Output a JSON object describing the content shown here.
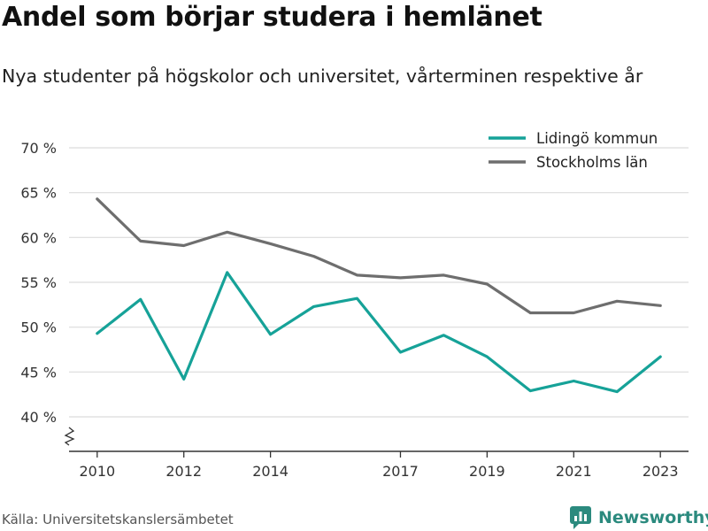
{
  "header": {
    "title": "Andel som börjar studera i hemlänet",
    "subtitle": "Nya studenter på högskolor och universitet, vårterminen respektive år"
  },
  "footer": {
    "source": "Källa: Universitetskanslersämbetet",
    "brand": "Newsworthy",
    "brand_icon": "newsworthy-logo-icon"
  },
  "colors": {
    "lidingo": "#16a298",
    "stockholm": "#6e6e6e",
    "grid": "#dcdcdc",
    "brand": "#2b8a7e"
  },
  "chart_data": {
    "type": "line",
    "title": "Andel som börjar studera i hemlänet",
    "subtitle": "Nya studenter på högskolor och universitet, vårterminen respektive år",
    "xlabel": "",
    "ylabel": "",
    "x": [
      2010,
      2011,
      2012,
      2013,
      2014,
      2015,
      2016,
      2017,
      2018,
      2019,
      2020,
      2021,
      2022,
      2023
    ],
    "x_ticks": [
      "2010",
      "2012",
      "2014",
      "2017",
      "2019",
      "2021",
      "2023"
    ],
    "x_tick_values": [
      2010,
      2012,
      2014,
      2017,
      2019,
      2021,
      2023
    ],
    "y_ticks": [
      "40 %",
      "45 %",
      "50 %",
      "55 %",
      "60 %",
      "65 %",
      "70 %"
    ],
    "y_tick_values": [
      40,
      45,
      50,
      55,
      60,
      65,
      70
    ],
    "ylim": [
      35,
      70
    ],
    "y_axis_break": true,
    "grid": true,
    "legend_position": "top-right",
    "series": [
      {
        "name": "Lidingö kommun",
        "color": "#16a298",
        "values": [
          49.3,
          53.1,
          44.2,
          56.1,
          49.2,
          52.3,
          53.2,
          47.2,
          49.1,
          46.7,
          42.9,
          44.0,
          42.8,
          46.7
        ]
      },
      {
        "name": "Stockholms län",
        "color": "#6e6e6e",
        "values": [
          64.3,
          59.6,
          59.1,
          60.6,
          59.3,
          57.9,
          55.8,
          55.5,
          55.8,
          54.8,
          51.6,
          51.6,
          52.9,
          52.4
        ]
      }
    ]
  }
}
